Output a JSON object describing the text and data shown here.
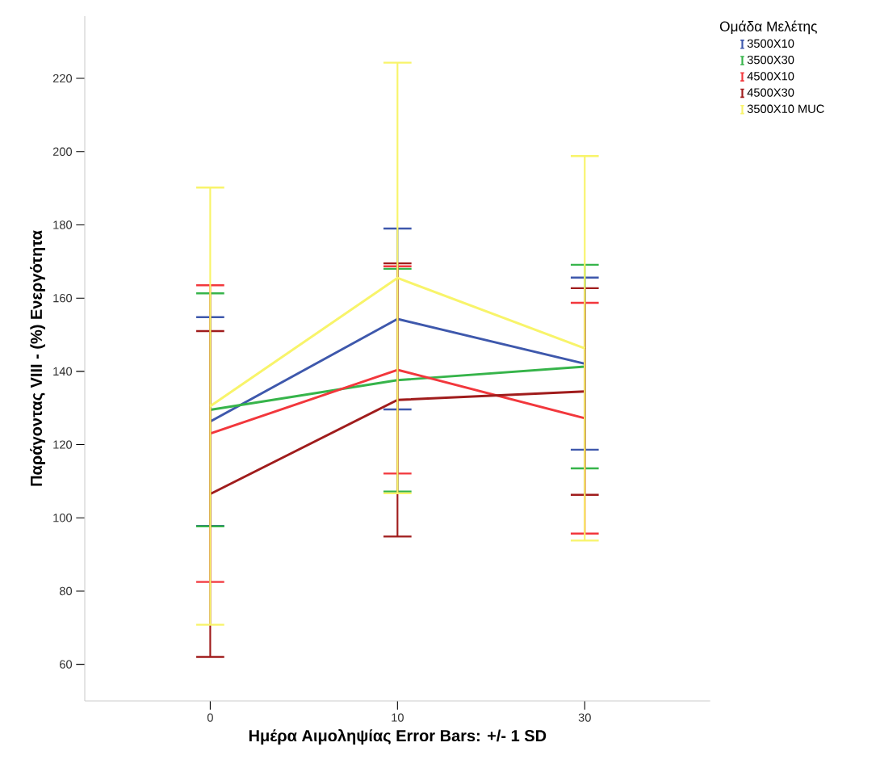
{
  "chart_data": {
    "type": "line",
    "xlabel": "Ημέρα Αιμοληψίας Error Bars: +/- 1 SD",
    "ylabel": "Παράγοντας VIII - (%) Ενεργότητα",
    "legend_title": "Ομάδα Μελέτης",
    "legend": "top right",
    "categories": [
      "0",
      "10",
      "30"
    ],
    "ylim": [
      50,
      237
    ],
    "yticks": [
      60,
      80,
      100,
      120,
      140,
      160,
      180,
      200,
      220
    ],
    "series": [
      {
        "name": "3500X10",
        "color": "#3e58ac",
        "values": [
          126.3,
          154.3,
          142.1
        ],
        "errors": [
          28.5,
          24.7,
          23.5
        ]
      },
      {
        "name": "3500X30",
        "color": "#36b44a",
        "values": [
          129.5,
          137.6,
          141.3
        ],
        "errors": [
          31.8,
          30.4,
          27.8
        ]
      },
      {
        "name": "4500X10",
        "color": "#f2373c",
        "values": [
          123.0,
          140.4,
          127.2
        ],
        "errors": [
          40.5,
          28.3,
          31.5
        ]
      },
      {
        "name": "4500X30",
        "color": "#a01c1c",
        "values": [
          106.5,
          132.2,
          134.5
        ],
        "errors": [
          44.5,
          37.3,
          28.2
        ]
      },
      {
        "name": "3500X10 MUC",
        "color": "#f8f46a",
        "values": [
          130.5,
          165.5,
          146.3
        ],
        "errors": [
          59.7,
          58.8,
          52.5
        ]
      }
    ]
  }
}
